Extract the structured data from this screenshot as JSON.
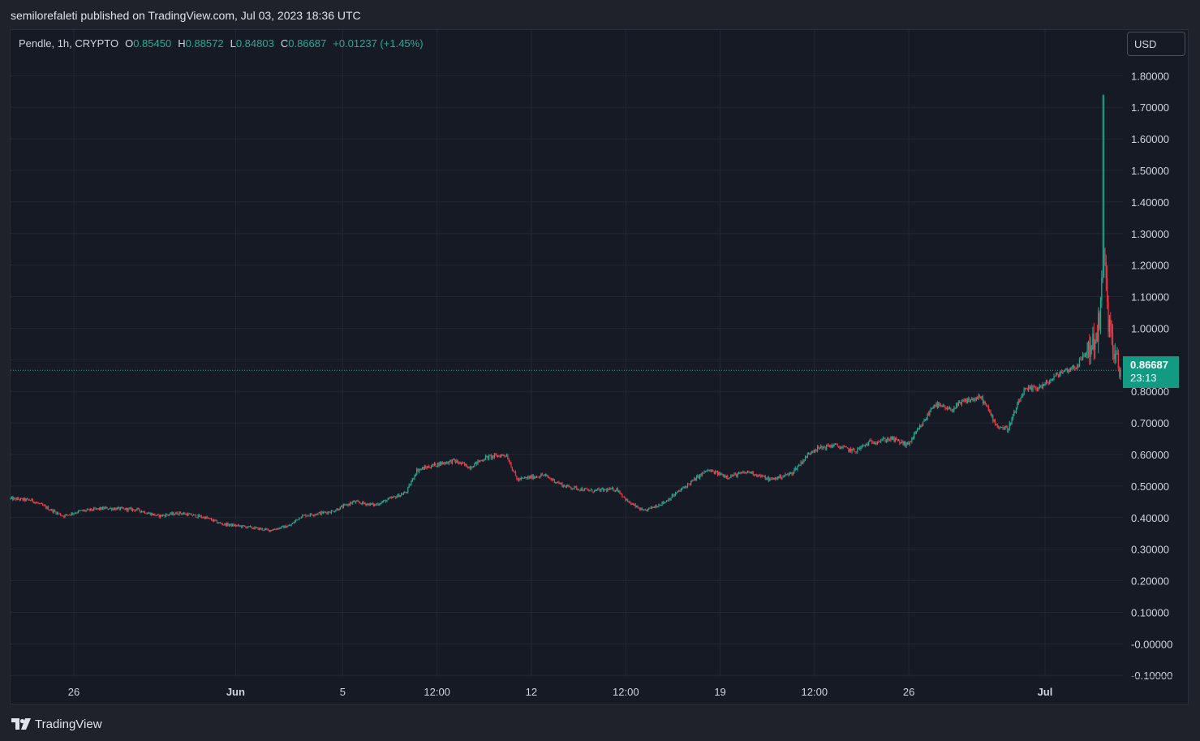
{
  "header": {
    "published_line": "semilorefaleti published on TradingView.com, Jul 03, 2023 18:36 UTC"
  },
  "legend": {
    "symbol": "Pendle, 1h, CRYPTO",
    "o_label": "O",
    "o_value": "0.85450",
    "h_label": "H",
    "h_value": "0.88572",
    "l_label": "L",
    "l_value": "0.84803",
    "c_label": "C",
    "c_value": "0.86687",
    "change": "+0.01237 (+1.45%)"
  },
  "currency_button": {
    "label": "USD"
  },
  "price_tag": {
    "price": "0.86687",
    "countdown": "23:13"
  },
  "footer": {
    "brand": "TradingView"
  },
  "colors": {
    "up": "#22ab94",
    "down": "#f23645",
    "grid": "#232733",
    "background": "#161a25",
    "text": "#d1d4dc",
    "price_line": "#22ab94"
  },
  "chart_data": {
    "type": "candlestick",
    "symbol": "Pendle",
    "interval": "1h",
    "ylim": [
      -0.12,
      1.86
    ],
    "y_ticks": [
      "1.80000",
      "1.70000",
      "1.60000",
      "1.50000",
      "1.40000",
      "1.30000",
      "1.20000",
      "1.10000",
      "1.00000",
      "0.90000",
      "0.80000",
      "0.70000",
      "0.60000",
      "0.50000",
      "0.40000",
      "0.30000",
      "0.20000",
      "0.10000",
      "-0.00000",
      "-0.10000"
    ],
    "x_ticks": [
      {
        "label": "26",
        "t": 0.06
      },
      {
        "label": "Jun",
        "t": 0.2133
      },
      {
        "label": "5",
        "t": 0.3148
      },
      {
        "label": "12:00",
        "t": 0.4042
      },
      {
        "label": "12",
        "t": 0.4936
      },
      {
        "label": "12:00",
        "t": 0.5831
      },
      {
        "label": "19",
        "t": 0.6725
      },
      {
        "label": "12:00",
        "t": 0.7619
      },
      {
        "label": "26",
        "t": 0.8513
      },
      {
        "label": "Jul",
        "t": 0.9804
      }
    ],
    "x_range": [
      0,
      1.055
    ],
    "last_price": 0.86687,
    "anchors": [
      [
        0.0,
        0.46
      ],
      [
        0.02,
        0.455
      ],
      [
        0.035,
        0.43
      ],
      [
        0.05,
        0.405
      ],
      [
        0.065,
        0.42
      ],
      [
        0.09,
        0.43
      ],
      [
        0.12,
        0.425
      ],
      [
        0.14,
        0.405
      ],
      [
        0.16,
        0.415
      ],
      [
        0.185,
        0.4
      ],
      [
        0.2,
        0.38
      ],
      [
        0.225,
        0.37
      ],
      [
        0.245,
        0.36
      ],
      [
        0.265,
        0.375
      ],
      [
        0.275,
        0.405
      ],
      [
        0.305,
        0.42
      ],
      [
        0.325,
        0.45
      ],
      [
        0.345,
        0.44
      ],
      [
        0.36,
        0.46
      ],
      [
        0.375,
        0.48
      ],
      [
        0.385,
        0.55
      ],
      [
        0.405,
        0.57
      ],
      [
        0.42,
        0.58
      ],
      [
        0.435,
        0.56
      ],
      [
        0.45,
        0.59
      ],
      [
        0.47,
        0.6
      ],
      [
        0.48,
        0.52
      ],
      [
        0.505,
        0.535
      ],
      [
        0.525,
        0.5
      ],
      [
        0.55,
        0.485
      ],
      [
        0.575,
        0.49
      ],
      [
        0.585,
        0.45
      ],
      [
        0.6,
        0.42
      ],
      [
        0.62,
        0.45
      ],
      [
        0.64,
        0.5
      ],
      [
        0.66,
        0.55
      ],
      [
        0.68,
        0.53
      ],
      [
        0.7,
        0.545
      ],
      [
        0.72,
        0.52
      ],
      [
        0.74,
        0.54
      ],
      [
        0.76,
        0.615
      ],
      [
        0.78,
        0.63
      ],
      [
        0.8,
        0.61
      ],
      [
        0.815,
        0.64
      ],
      [
        0.835,
        0.65
      ],
      [
        0.85,
        0.63
      ],
      [
        0.865,
        0.7
      ],
      [
        0.875,
        0.76
      ],
      [
        0.89,
        0.74
      ],
      [
        0.905,
        0.77
      ],
      [
        0.92,
        0.78
      ],
      [
        0.935,
        0.69
      ],
      [
        0.945,
        0.68
      ],
      [
        0.96,
        0.8
      ],
      [
        0.98,
        0.82
      ],
      [
        0.995,
        0.86
      ],
      [
        1.01,
        0.88
      ],
      [
        1.025,
        0.95
      ],
      [
        1.032,
        1.01
      ],
      [
        1.036,
        1.23
      ],
      [
        1.04,
        1.05
      ],
      [
        1.046,
        0.9
      ],
      [
        1.052,
        0.866
      ]
    ],
    "spike": {
      "t": 1.036,
      "high": 1.74
    }
  }
}
